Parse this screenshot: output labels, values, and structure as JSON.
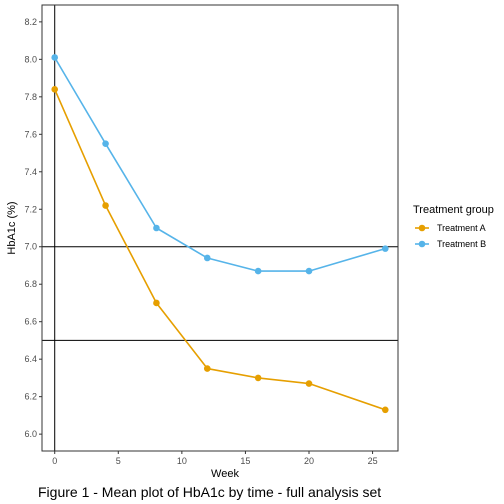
{
  "chart_data": {
    "type": "line",
    "caption": "Figure 1 - Mean plot of HbA1c by time - full analysis set",
    "xlabel": "Week",
    "ylabel": "HbA1c (%)",
    "xlim": [
      -1,
      27
    ],
    "ylim": [
      5.91,
      8.29
    ],
    "x_ticks": [
      0,
      5,
      10,
      15,
      20,
      25
    ],
    "y_ticks": [
      6.0,
      6.2,
      6.4,
      6.6,
      6.8,
      7.0,
      7.2,
      7.4,
      7.6,
      7.8,
      8.0,
      8.2
    ],
    "grid": false,
    "reference_lines": {
      "horizontal": [
        7.0,
        6.5
      ],
      "vertical": [
        0
      ]
    },
    "legend": {
      "title": "Treatment group",
      "placement": "right"
    },
    "x": [
      0,
      4,
      8,
      12,
      16,
      20,
      26
    ],
    "series": [
      {
        "name": "Treatment A",
        "color": "#e69f00",
        "values": [
          7.84,
          7.22,
          6.7,
          6.35,
          6.3,
          6.27,
          6.13
        ]
      },
      {
        "name": "Treatment B",
        "color": "#56b4e9",
        "values": [
          8.01,
          7.55,
          7.1,
          6.94,
          6.87,
          6.87,
          6.99
        ]
      }
    ]
  }
}
